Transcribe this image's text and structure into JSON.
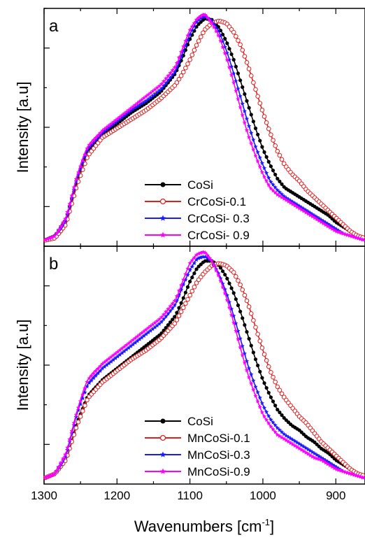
{
  "chart_data": [
    {
      "type": "line",
      "panel_label": "a",
      "xlabel": "",
      "ylabel": "Intensity [a.u]",
      "xlim": [
        1300,
        860
      ],
      "ylim": [
        0,
        1.0
      ],
      "x_reversed": true,
      "grid": false,
      "legend_position": "center-right",
      "series": [
        {
          "name": "CoSi",
          "color": "#000000",
          "marker": "filled-circle"
        },
        {
          "name": "CrCoSi-0.1",
          "color": "#e02020",
          "marker": "open-circle"
        },
        {
          "name": "CrCoSi- 0.3",
          "color": "#1a1aff",
          "marker": "star"
        },
        {
          "name": "CrCoSi- 0.9",
          "color": "#ff00ff",
          "marker": "star"
        }
      ],
      "x": [
        1300,
        1285,
        1270,
        1255,
        1240,
        1220,
        1200,
        1180,
        1160,
        1140,
        1120,
        1110,
        1100,
        1090,
        1080,
        1070,
        1060,
        1050,
        1040,
        1030,
        1020,
        1010,
        1000,
        990,
        980,
        970,
        960,
        950,
        940,
        930,
        920,
        910,
        900,
        890,
        880,
        870,
        860
      ],
      "values": [
        [
          0.01,
          0.03,
          0.1,
          0.27,
          0.4,
          0.47,
          0.52,
          0.57,
          0.61,
          0.66,
          0.74,
          0.81,
          0.89,
          0.95,
          0.98,
          0.975,
          0.94,
          0.88,
          0.8,
          0.7,
          0.6,
          0.5,
          0.41,
          0.34,
          0.28,
          0.24,
          0.22,
          0.2,
          0.18,
          0.16,
          0.14,
          0.12,
          0.09,
          0.07,
          0.05,
          0.03,
          0.02
        ],
        [
          0.01,
          0.02,
          0.08,
          0.25,
          0.38,
          0.46,
          0.5,
          0.54,
          0.58,
          0.63,
          0.69,
          0.74,
          0.8,
          0.87,
          0.93,
          0.96,
          0.97,
          0.96,
          0.92,
          0.86,
          0.77,
          0.67,
          0.57,
          0.48,
          0.4,
          0.34,
          0.3,
          0.27,
          0.23,
          0.2,
          0.17,
          0.14,
          0.11,
          0.08,
          0.05,
          0.03,
          0.02
        ],
        [
          0.01,
          0.03,
          0.1,
          0.28,
          0.41,
          0.48,
          0.53,
          0.58,
          0.62,
          0.67,
          0.75,
          0.83,
          0.91,
          0.97,
          0.99,
          0.97,
          0.92,
          0.84,
          0.74,
          0.63,
          0.52,
          0.42,
          0.34,
          0.27,
          0.23,
          0.2,
          0.18,
          0.16,
          0.14,
          0.12,
          0.1,
          0.08,
          0.06,
          0.04,
          0.03,
          0.02,
          0.01
        ],
        [
          0.01,
          0.03,
          0.11,
          0.29,
          0.42,
          0.49,
          0.54,
          0.59,
          0.64,
          0.69,
          0.77,
          0.85,
          0.93,
          0.98,
          1.0,
          0.96,
          0.9,
          0.81,
          0.7,
          0.58,
          0.47,
          0.38,
          0.3,
          0.24,
          0.21,
          0.19,
          0.17,
          0.15,
          0.13,
          0.11,
          0.09,
          0.07,
          0.05,
          0.04,
          0.03,
          0.02,
          0.01
        ]
      ]
    },
    {
      "type": "line",
      "panel_label": "b",
      "xlabel": "Wavenumbers [cm-1]",
      "xlabel_main": "Wavenumbers [cm",
      "xlabel_sup": "-1",
      "xlabel_end": "]",
      "ylabel": "Intensity [a.u]",
      "xlim": [
        1300,
        860
      ],
      "ylim": [
        0,
        1.0
      ],
      "x_reversed": true,
      "x_ticks": [
        1300,
        1200,
        1100,
        1000,
        900
      ],
      "x_tick_labels": [
        "1300",
        "1200",
        "1100",
        "1000",
        "900"
      ],
      "grid": false,
      "legend_position": "center-right",
      "series": [
        {
          "name": "CoSi",
          "color": "#000000",
          "marker": "filled-circle"
        },
        {
          "name": "MnCoSi-0.1",
          "color": "#e02020",
          "marker": "open-circle"
        },
        {
          "name": "MnCoSi-0.3",
          "color": "#1a1aff",
          "marker": "star"
        },
        {
          "name": "MnCoSi-0.9",
          "color": "#ff00ff",
          "marker": "star"
        }
      ],
      "x": [
        1300,
        1285,
        1270,
        1255,
        1240,
        1220,
        1200,
        1180,
        1160,
        1140,
        1120,
        1110,
        1100,
        1090,
        1080,
        1070,
        1060,
        1050,
        1040,
        1030,
        1020,
        1010,
        1000,
        990,
        980,
        970,
        960,
        950,
        940,
        930,
        920,
        910,
        900,
        890,
        880,
        870,
        860
      ],
      "values": [
        [
          0.01,
          0.03,
          0.09,
          0.25,
          0.37,
          0.44,
          0.49,
          0.54,
          0.59,
          0.64,
          0.72,
          0.79,
          0.87,
          0.93,
          0.96,
          0.96,
          0.94,
          0.89,
          0.82,
          0.73,
          0.63,
          0.53,
          0.44,
          0.37,
          0.31,
          0.27,
          0.24,
          0.22,
          0.19,
          0.17,
          0.14,
          0.12,
          0.09,
          0.07,
          0.05,
          0.03,
          0.02
        ],
        [
          0.01,
          0.03,
          0.09,
          0.24,
          0.36,
          0.43,
          0.48,
          0.53,
          0.57,
          0.62,
          0.69,
          0.75,
          0.81,
          0.87,
          0.91,
          0.94,
          0.95,
          0.94,
          0.91,
          0.85,
          0.77,
          0.67,
          0.57,
          0.48,
          0.41,
          0.36,
          0.32,
          0.28,
          0.25,
          0.21,
          0.17,
          0.14,
          0.11,
          0.08,
          0.05,
          0.03,
          0.02
        ],
        [
          0.01,
          0.03,
          0.11,
          0.29,
          0.42,
          0.49,
          0.54,
          0.59,
          0.64,
          0.69,
          0.77,
          0.85,
          0.92,
          0.97,
          0.98,
          0.96,
          0.9,
          0.82,
          0.72,
          0.61,
          0.5,
          0.41,
          0.33,
          0.27,
          0.23,
          0.2,
          0.18,
          0.16,
          0.14,
          0.12,
          0.1,
          0.08,
          0.06,
          0.04,
          0.03,
          0.02,
          0.01
        ],
        [
          0.01,
          0.03,
          0.12,
          0.3,
          0.44,
          0.51,
          0.56,
          0.61,
          0.66,
          0.71,
          0.79,
          0.87,
          0.95,
          0.99,
          1.0,
          0.96,
          0.89,
          0.8,
          0.69,
          0.57,
          0.46,
          0.37,
          0.29,
          0.24,
          0.2,
          0.18,
          0.16,
          0.14,
          0.12,
          0.1,
          0.09,
          0.07,
          0.05,
          0.04,
          0.03,
          0.02,
          0.01
        ]
      ]
    }
  ]
}
